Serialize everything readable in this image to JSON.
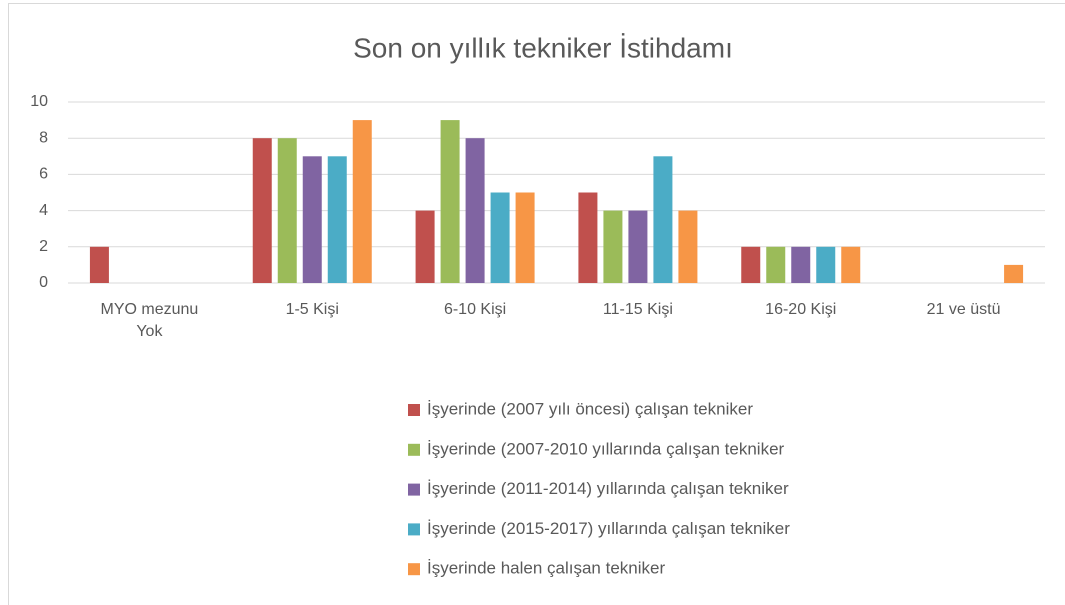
{
  "chart_data": {
    "type": "bar",
    "title": "Son on yıllık tekniker İstihdamı",
    "categories": [
      "MYO mezunu Yok",
      "1-5 Kişi",
      "6-10 Kişi",
      "11-15 Kişi",
      "16-20 Kişi",
      "21 ve üstü"
    ],
    "series": [
      {
        "name": "İşyerinde (2007 yılı öncesi) çalışan tekniker",
        "color": "#c0504d",
        "values": [
          2,
          8,
          4,
          5,
          2,
          0
        ]
      },
      {
        "name": "İşyerinde (2007-2010 yıllarında çalışan tekniker",
        "color": "#9bbb59",
        "values": [
          0,
          8,
          9,
          4,
          2,
          0
        ]
      },
      {
        "name": "İşyerinde (2011-2014) yıllarında çalışan tekniker",
        "color": "#8064a2",
        "values": [
          0,
          7,
          8,
          4,
          2,
          0
        ]
      },
      {
        "name": "İşyerinde (2015-2017) yıllarında çalışan tekniker",
        "color": "#4bacc6",
        "values": [
          0,
          7,
          5,
          7,
          2,
          0
        ]
      },
      {
        "name": "İşyerinde halen çalışan tekniker",
        "color": "#f79646",
        "values": [
          0,
          9,
          5,
          4,
          2,
          1
        ]
      }
    ],
    "ylim": [
      0,
      10
    ],
    "yticks": [
      0,
      2,
      4,
      6,
      8,
      10
    ],
    "grid": true,
    "legend": "bottom"
  }
}
